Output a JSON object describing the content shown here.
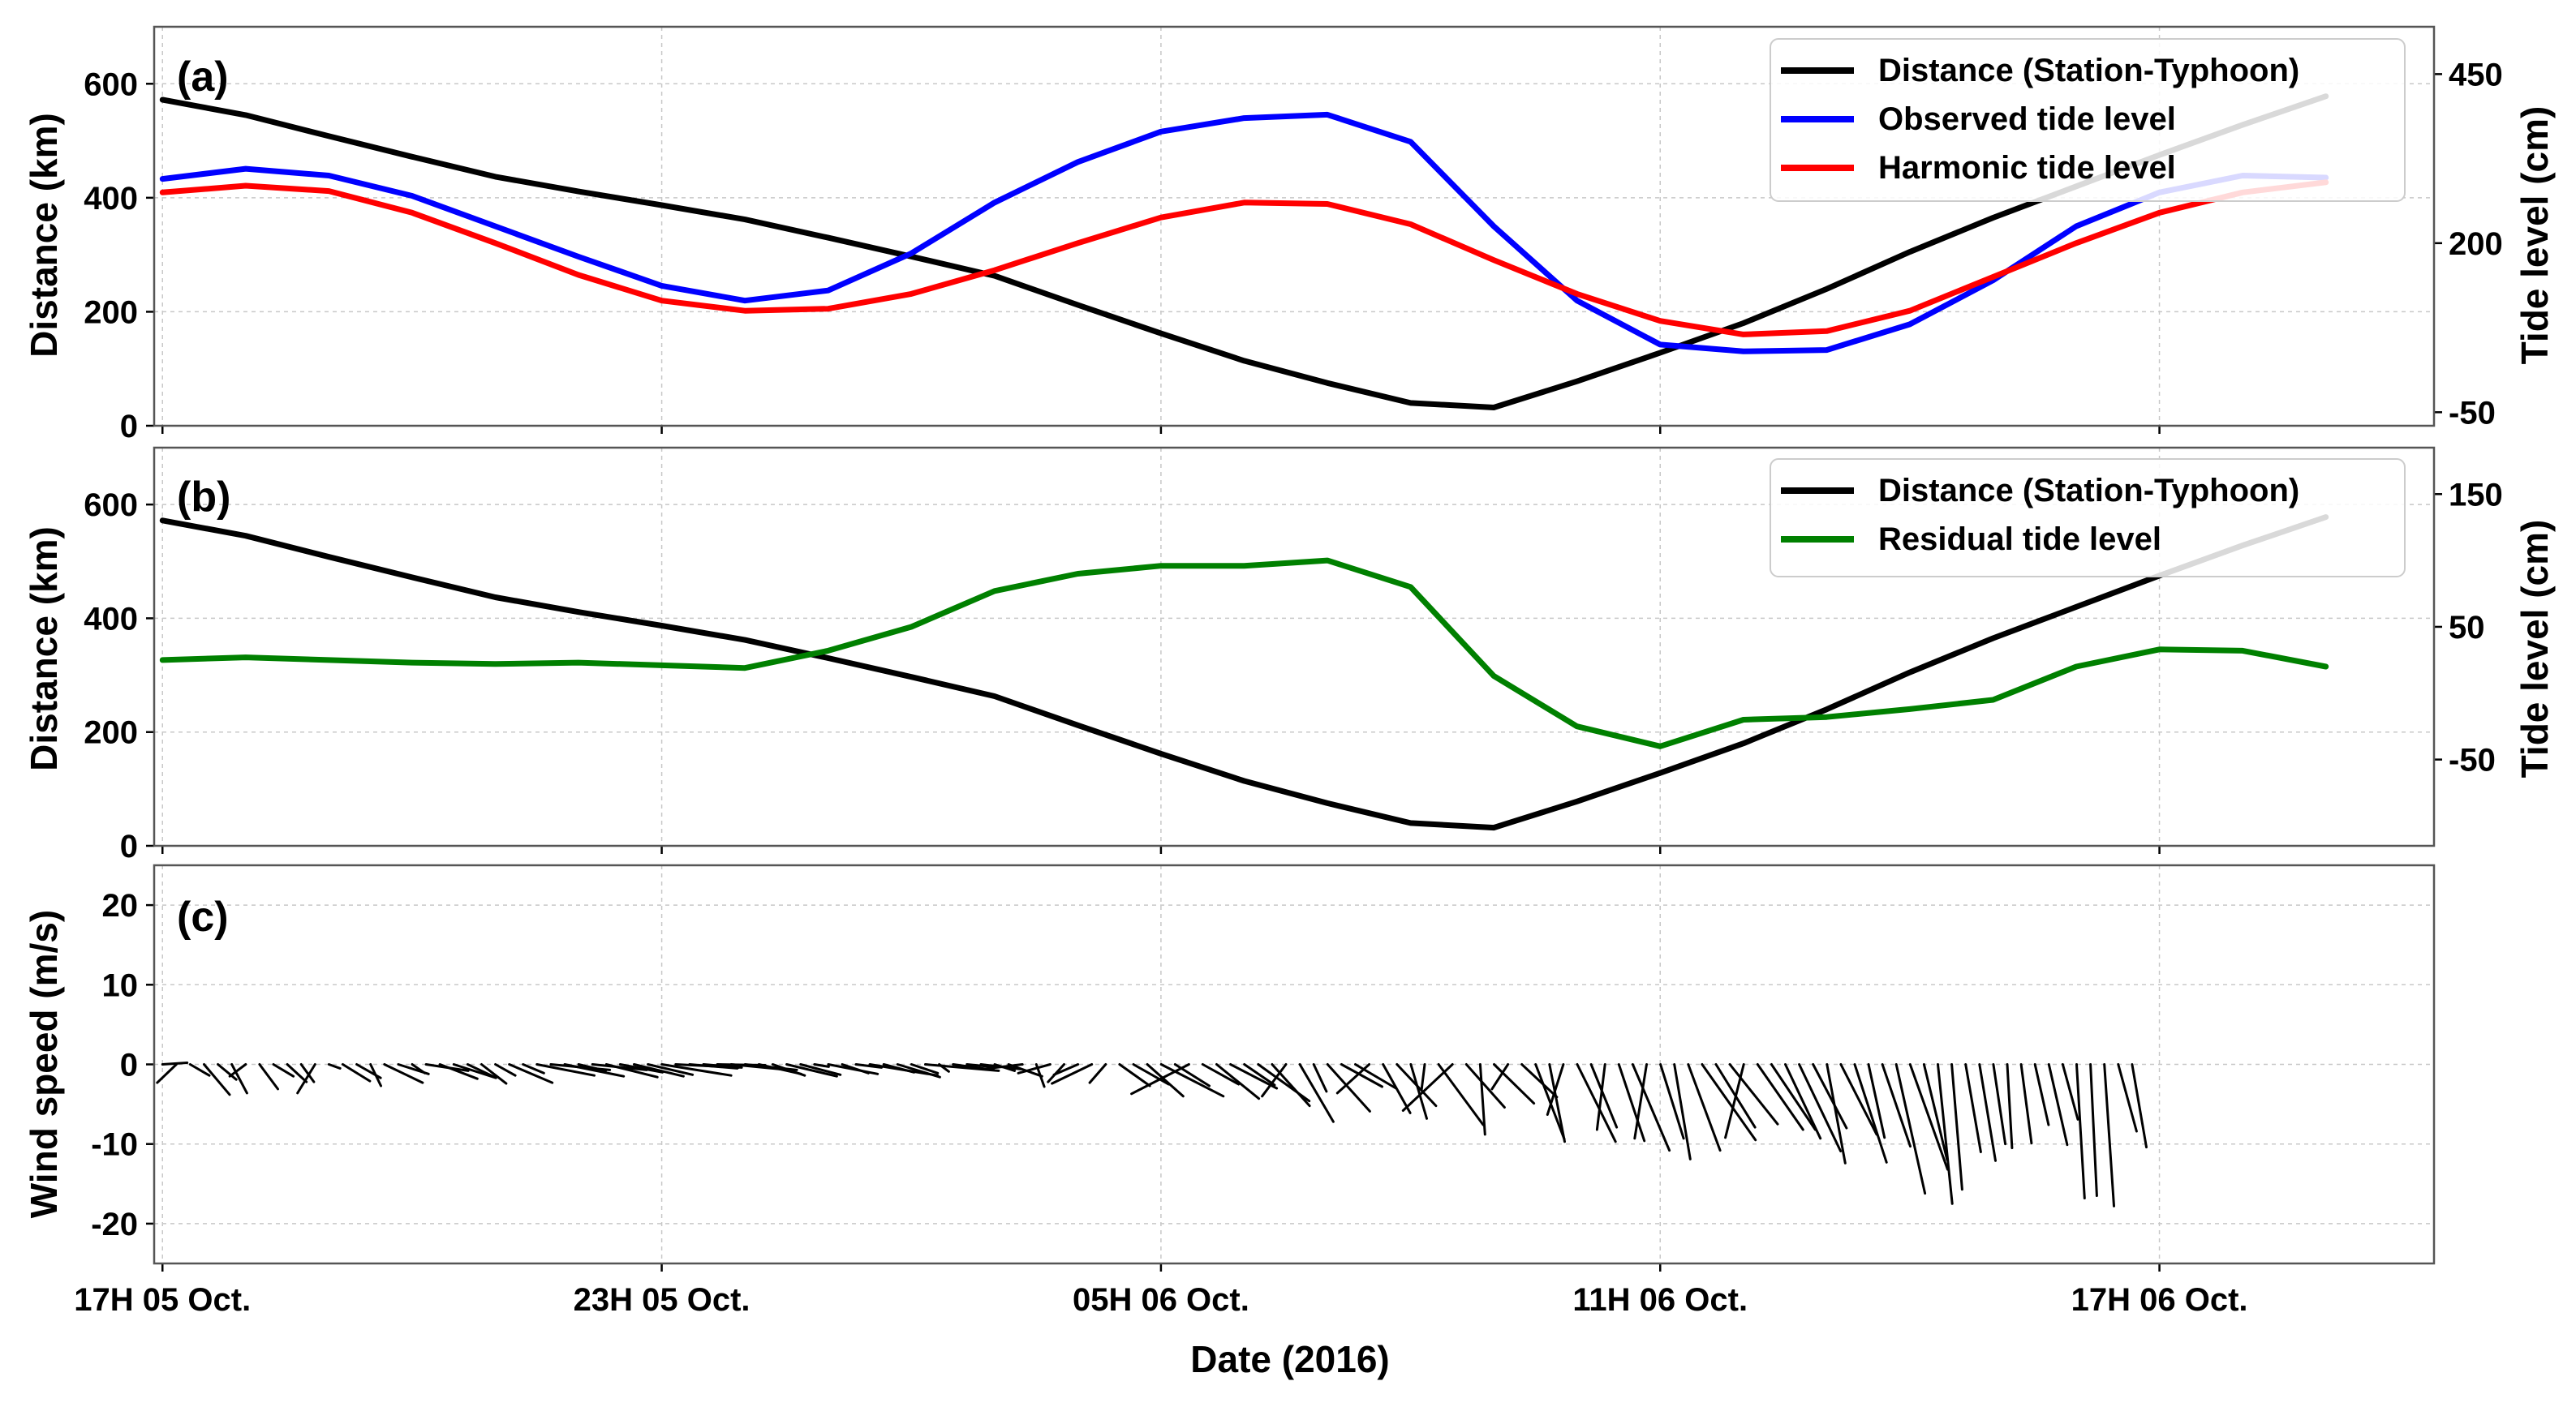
{
  "chart_data": {
    "type": "line",
    "xlabel": "Date (2016)",
    "x": [
      17,
      18,
      19,
      20,
      21,
      22,
      23,
      24,
      25,
      26,
      27,
      28,
      29,
      30,
      31,
      32,
      33,
      34,
      35,
      36,
      37,
      38,
      39,
      40,
      41,
      42,
      43
    ],
    "xlim": [
      16.9,
      44.3
    ],
    "xticks": [
      {
        "x": 17,
        "label": "17H 05 Oct."
      },
      {
        "x": 23,
        "label": "23H 05 Oct."
      },
      {
        "x": 29,
        "label": "05H 06 Oct."
      },
      {
        "x": 35,
        "label": "11H 06 Oct."
      },
      {
        "x": 41,
        "label": "17H 06 Oct."
      }
    ],
    "panels": [
      {
        "label": "(a)",
        "ylabel": "Distance (km)",
        "ylim": [
          0,
          700
        ],
        "yticks": [
          0,
          200,
          400,
          600
        ],
        "y2label": "Tide level (cm)",
        "y2lim": [
          -70,
          520
        ],
        "y2ticks": [
          -50,
          200,
          450
        ],
        "series": [
          {
            "name": "Distance (Station-Typhoon)",
            "color": "#000000",
            "axis": "left",
            "values": [
              572,
              545,
              508,
              472,
              437,
              411,
              387,
              362,
              330,
              297,
              263,
              212,
              162,
              114,
              75,
              40,
              32,
              78,
              128,
              180,
              240,
              305,
              365,
              420,
              475,
              528,
              578
            ]
          },
          {
            "name": "Observed tide level",
            "color": "#0000ff",
            "axis": "right",
            "values": [
              295,
              310,
              300,
              270,
              225,
              180,
              137,
              115,
              130,
              185,
              260,
              320,
              365,
              385,
              390,
              350,
              225,
              115,
              50,
              40,
              42,
              80,
              145,
              225,
              275,
              300,
              297
            ]
          },
          {
            "name": "Harmonic tide level",
            "color": "#ff0000",
            "axis": "right",
            "values": [
              275,
              285,
              277,
              245,
              200,
              153,
              115,
              100,
              103,
              125,
              160,
              200,
              238,
              260,
              258,
              228,
              175,
              125,
              85,
              65,
              70,
              100,
              150,
              200,
              245,
              275,
              290
            ]
          }
        ]
      },
      {
        "label": "(b)",
        "ylabel": "Distance (km)",
        "ylim": [
          0,
          700
        ],
        "yticks": [
          0,
          200,
          400,
          600
        ],
        "y2label": "Tide level (cm)",
        "y2lim": [
          -115,
          185
        ],
        "y2ticks": [
          -50,
          50,
          150
        ],
        "series": [
          {
            "name": "Distance (Station-Typhoon)",
            "color": "#000000",
            "axis": "left",
            "values": [
              572,
              545,
              508,
              472,
              437,
              411,
              387,
              362,
              330,
              297,
              263,
              212,
              162,
              114,
              75,
              40,
              32,
              78,
              128,
              180,
              240,
              305,
              365,
              420,
              475,
              528,
              578
            ]
          },
          {
            "name": "Residual tide level",
            "color": "#008000",
            "axis": "right",
            "values": [
              25,
              27,
              25,
              23,
              22,
              23,
              21,
              19,
              32,
              50,
              77,
              90,
              96,
              96,
              100,
              80,
              13,
              -25,
              -40,
              -20,
              -18,
              -12,
              -5,
              20,
              33,
              32,
              20
            ]
          }
        ]
      },
      {
        "label": "(c)",
        "ylabel": "Wind speed (m/s)",
        "ylim": [
          -25,
          25
        ],
        "yticks": [
          -20,
          -10,
          0,
          10,
          20
        ],
        "sticks": {
          "start": 17.0,
          "step": 0.1667,
          "u": [
            3.1,
            -2.4,
            2.4,
            3.2,
            2.3,
            1.9,
            -2.0,
            2.3,
            2.5,
            2.4,
            1.6,
            -2.2,
            1.4,
            3.4,
            3.0,
            1.3,
            4.8,
            3.8,
            1.6,
            5.3,
            4.7,
            5.3,
            3.4,
            3.1,
            2.5,
            5.4,
            2.6,
            7.2,
            7.4,
            7.4,
            3.4,
            6.8,
            6.4,
            5.3,
            6.2,
            5.6,
            8.7,
            7.9,
            6.0,
            4.8,
            6.0,
            7.2,
            6.5,
            5.3,
            4.0,
            6.3,
            5.0,
            1.8,
            6.2,
            3.3,
            3.2,
            8.5,
            3.8,
            5.3,
            3.3,
            9.2,
            1.2,
            5.1,
            3.0,
            5.0,
            2.5,
            4.2,
            -5.0,
            1.0,
            -4.0,
            -2.0,
            -3.0,
            -5.0,
            -2.0,
            3.8,
            4.4,
            4.5,
            7.8,
            4.3,
            -7.2,
            4.5,
            5.3,
            5.8,
            3.8,
            6.4,
            4.7,
            -3.0,
            4.2,
            1.6,
            5.3,
            5.1,
            5.1,
            -4.0,
            3.4,
            4.9,
            2.0,
            -0.4,
            5.6,
            -6.2,
            4.8,
            0.6,
            5.0,
            -2.0,
            4.4,
            3.6,
            1.9,
            -2.0,
            4.8,
            3.2,
            -1.0,
            3.2,
            4.6,
            -1.5,
            2.9,
            2.0,
            4.0,
            6.7,
            4.9,
            6.0,
            -2.3,
            5.7,
            5.5,
            4.4,
            5.2,
            4.2,
            2.3,
            4.5,
            4.0,
            2.0,
            3.5,
            3.6,
            4.7,
            2.9,
            1.8,
            1.3,
            1.9,
            2.0,
            1.5,
            0.6,
            1.3,
            1.7,
            2.3,
            1.9,
            1.0,
            0.8,
            1.2,
            2.3,
            1.8
          ],
          "v": [
            0.2,
            -2.3,
            -1.4,
            -3.8,
            -1.9,
            -3.6,
            -1.5,
            -3.1,
            -1.5,
            -2.2,
            -2.2,
            -3.6,
            -0.5,
            -2.1,
            -1.7,
            -2.7,
            -2.3,
            -1.2,
            -1.1,
            -0.8,
            -1.8,
            -1.7,
            -1.6,
            -2.4,
            -1.4,
            -2.3,
            -1.1,
            -1.4,
            -0.7,
            -1.5,
            -0.8,
            -0.7,
            -1.6,
            -1.0,
            -1.5,
            -1.3,
            -1.4,
            -0.4,
            -0.5,
            -0.4,
            -0.1,
            -0.7,
            -0.7,
            -1.2,
            -1.4,
            -1.5,
            -1.3,
            -0.3,
            -1.2,
            -1.1,
            -0.4,
            -1.4,
            -1.0,
            -1.6,
            -1.1,
            -0.8,
            -0.9,
            -0.7,
            -0.3,
            -0.6,
            -0.8,
            -1.5,
            -0.6,
            -2.8,
            -1.1,
            -2.2,
            -1.3,
            -2.4,
            -2.3,
            -2.7,
            -2.5,
            -4.0,
            -4.0,
            -2.7,
            -3.7,
            -2.5,
            -4.3,
            -3.0,
            -2.6,
            -4.6,
            -5.2,
            -4.0,
            -7.2,
            -3.4,
            -5.9,
            -2.8,
            -3.0,
            -3.6,
            -6.1,
            -5.2,
            -6.8,
            -3.2,
            -7.6,
            -5.8,
            -5.4,
            -8.8,
            -4.9,
            -3.1,
            -4.1,
            -9.4,
            -9.7,
            -6.3,
            -9.7,
            -7.9,
            -8.2,
            -9.6,
            -10.8,
            -9.3,
            -9.3,
            -11.9,
            -10.8,
            -9.5,
            -7.9,
            -7.5,
            -9.2,
            -8.2,
            -8.2,
            -9.3,
            -10.9,
            -8.0,
            -12.4,
            -8.8,
            -12.3,
            -9.2,
            -10.3,
            -16.2,
            -13.2,
            -12.0,
            -17.5,
            -15.7,
            -11.0,
            -12.1,
            -10.0,
            -10.5,
            -9.9,
            -7.6,
            -10.1,
            -6.9,
            -16.8,
            -16.5,
            -17.8,
            -8.4,
            -10.4
          ]
        }
      }
    ]
  }
}
